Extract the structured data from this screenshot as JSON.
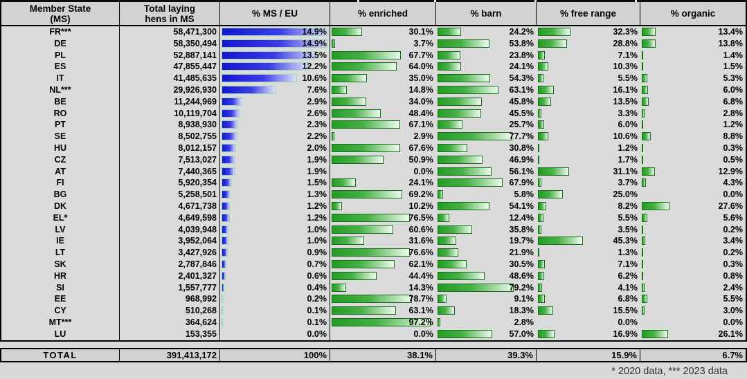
{
  "colors": {
    "page_bg": "#d9d9d9",
    "data_bg": "#dbdbdb",
    "header_bg": "#d2d2d2",
    "grid_line": "#000000",
    "blue_bar_start": "#1515d0",
    "blue_bar_mid": "#3b3be6",
    "blue_bar_end": "#dedeff",
    "blue_bar_border": "#94d8b6",
    "green_bar_start": "#249c24",
    "green_bar_mid": "#46b046",
    "green_bar_end": "#f0faf0",
    "green_bar_border": "#157015",
    "footnote_text": "#2f2f2f"
  },
  "chart_data": {
    "type": "table",
    "columns": [
      [
        "Member State",
        "(MS)"
      ],
      [
        "Total laying",
        "hens in MS"
      ],
      [
        "% MS / EU"
      ],
      [
        "% enriched"
      ],
      [
        "% barn"
      ],
      [
        "% free range"
      ],
      [
        "% organic"
      ]
    ],
    "bar_scales": {
      "ms_eu_bar_full_at_pct": 14.9,
      "method_bar_full_at_pct": 100
    },
    "rows": [
      {
        "ms": "FR***",
        "hens": "58,471,300",
        "ms_eu": 14.9,
        "enriched": 30.1,
        "barn": 24.2,
        "free_range": 32.3,
        "organic": 13.4
      },
      {
        "ms": "DE",
        "hens": "58,350,494",
        "ms_eu": 14.9,
        "enriched": 3.7,
        "barn": 53.8,
        "free_range": 28.8,
        "organic": 13.8
      },
      {
        "ms": "PL",
        "hens": "52,887,141",
        "ms_eu": 13.5,
        "enriched": 67.7,
        "barn": 23.8,
        "free_range": 7.1,
        "organic": 1.4
      },
      {
        "ms": "ES",
        "hens": "47,855,447",
        "ms_eu": 12.2,
        "enriched": 64.0,
        "barn": 24.1,
        "free_range": 10.3,
        "organic": 1.5
      },
      {
        "ms": "IT",
        "hens": "41,485,635",
        "ms_eu": 10.6,
        "enriched": 35.0,
        "barn": 54.3,
        "free_range": 5.5,
        "organic": 5.3
      },
      {
        "ms": "NL***",
        "hens": "29,926,930",
        "ms_eu": 7.6,
        "enriched": 14.8,
        "barn": 63.1,
        "free_range": 16.1,
        "organic": 6.0
      },
      {
        "ms": "BE",
        "hens": "11,244,969",
        "ms_eu": 2.9,
        "enriched": 34.0,
        "barn": 45.8,
        "free_range": 13.5,
        "organic": 6.8
      },
      {
        "ms": "RO",
        "hens": "10,119,704",
        "ms_eu": 2.6,
        "enriched": 48.4,
        "barn": 45.5,
        "free_range": 3.3,
        "organic": 2.8
      },
      {
        "ms": "PT",
        "hens": "8,938,930",
        "ms_eu": 2.3,
        "enriched": 67.1,
        "barn": 25.7,
        "free_range": 6.0,
        "organic": 1.2
      },
      {
        "ms": "SE",
        "hens": "8,502,755",
        "ms_eu": 2.2,
        "enriched": 2.9,
        "barn": 77.7,
        "free_range": 10.6,
        "organic": 8.8
      },
      {
        "ms": "HU",
        "hens": "8,012,157",
        "ms_eu": 2.0,
        "enriched": 67.6,
        "barn": 30.8,
        "free_range": 1.2,
        "organic": 0.3
      },
      {
        "ms": "CZ",
        "hens": "7,513,027",
        "ms_eu": 1.9,
        "enriched": 50.9,
        "barn": 46.9,
        "free_range": 1.7,
        "organic": 0.5
      },
      {
        "ms": "AT",
        "hens": "7,440,365",
        "ms_eu": 1.9,
        "enriched": 0.0,
        "barn": 56.1,
        "free_range": 31.1,
        "organic": 12.9
      },
      {
        "ms": "FI",
        "hens": "5,920,354",
        "ms_eu": 1.5,
        "enriched": 24.1,
        "barn": 67.9,
        "free_range": 3.7,
        "organic": 4.3
      },
      {
        "ms": "BG",
        "hens": "5,258,501",
        "ms_eu": 1.3,
        "enriched": 69.2,
        "barn": 5.8,
        "free_range": 25.0,
        "organic": 0.0
      },
      {
        "ms": "DK",
        "hens": "4,671,738",
        "ms_eu": 1.2,
        "enriched": 10.2,
        "barn": 54.1,
        "free_range": 8.2,
        "organic": 27.6
      },
      {
        "ms": "EL*",
        "hens": "4,649,598",
        "ms_eu": 1.2,
        "enriched": 76.5,
        "barn": 12.4,
        "free_range": 5.5,
        "organic": 5.6
      },
      {
        "ms": "LV",
        "hens": "4,039,948",
        "ms_eu": 1.0,
        "enriched": 60.6,
        "barn": 35.8,
        "free_range": 3.5,
        "organic": 0.2
      },
      {
        "ms": "IE",
        "hens": "3,952,064",
        "ms_eu": 1.0,
        "enriched": 31.6,
        "barn": 19.7,
        "free_range": 45.3,
        "organic": 3.4
      },
      {
        "ms": "LT",
        "hens": "3,427,926",
        "ms_eu": 0.9,
        "enriched": 76.6,
        "barn": 21.9,
        "free_range": 1.3,
        "organic": 0.2
      },
      {
        "ms": "SK",
        "hens": "2,787,846",
        "ms_eu": 0.7,
        "enriched": 62.1,
        "barn": 30.5,
        "free_range": 7.1,
        "organic": 0.3
      },
      {
        "ms": "HR",
        "hens": "2,401,327",
        "ms_eu": 0.6,
        "enriched": 44.4,
        "barn": 48.6,
        "free_range": 6.2,
        "organic": 0.8
      },
      {
        "ms": "SI",
        "hens": "1,557,777",
        "ms_eu": 0.4,
        "enriched": 14.3,
        "barn": 79.2,
        "free_range": 4.1,
        "organic": 2.4
      },
      {
        "ms": "EE",
        "hens": "968,992",
        "ms_eu": 0.2,
        "enriched": 78.7,
        "barn": 9.1,
        "free_range": 6.8,
        "organic": 5.5
      },
      {
        "ms": "CY",
        "hens": "510,268",
        "ms_eu": 0.1,
        "enriched": 63.1,
        "barn": 18.3,
        "free_range": 15.5,
        "organic": 3.0
      },
      {
        "ms": "MT***",
        "hens": "364,624",
        "ms_eu": 0.1,
        "enriched": 97.2,
        "barn": 2.8,
        "free_range": 0.0,
        "organic": 0.0
      },
      {
        "ms": "LU",
        "hens": "153,355",
        "ms_eu": 0.0,
        "enriched": 0.0,
        "barn": 57.0,
        "free_range": 16.9,
        "organic": 26.1
      }
    ],
    "total": {
      "label": "TOTAL",
      "hens": "391,413,172",
      "ms_eu": "100%",
      "enriched": "38.1%",
      "barn": "39.3%",
      "free_range": "15.9%",
      "organic": "6.7%"
    },
    "footnote": "* 2020 data, *** 2023 data"
  }
}
